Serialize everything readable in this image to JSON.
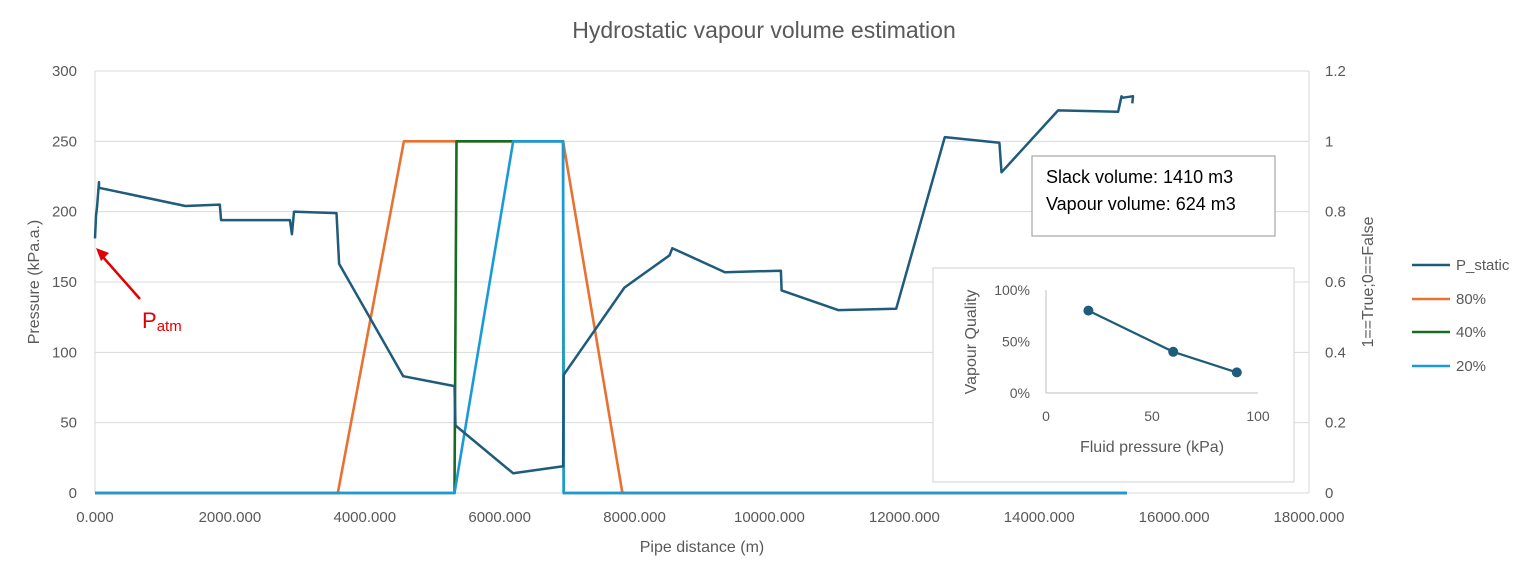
{
  "chart_data": {
    "type": "line",
    "title": "Hydrostatic vapour volume estimation",
    "xlabel": "Pipe distance (m)",
    "ylabel": "Pressure (kPa.a.)",
    "y2label": "1==True;0==False",
    "xlim": [
      0,
      18000
    ],
    "ylim": [
      0,
      300
    ],
    "y2lim": [
      0,
      1.2
    ],
    "x_ticks": [
      "0.000",
      "2000.000",
      "4000.000",
      "6000.000",
      "8000.000",
      "10000.000",
      "12000.000",
      "14000.000",
      "16000.000",
      "18000.000"
    ],
    "y_ticks": [
      "0",
      "50",
      "100",
      "150",
      "200",
      "250",
      "300"
    ],
    "y2_ticks": [
      "0",
      "0.2",
      "0.4",
      "0.6",
      "0.8",
      "1",
      "1.2"
    ],
    "grid": true,
    "legend_position": "right",
    "series": [
      {
        "name": "P_static",
        "axis": "left",
        "color": "#1f5b7a",
        "x": [
          0,
          15,
          30,
          45,
          60,
          60,
          1340,
          1850,
          1870,
          2890,
          2920,
          2950,
          2980,
          3580,
          3620,
          4570,
          5330,
          5345,
          6200,
          6940,
          6950,
          7850,
          8520,
          8560,
          9340,
          10170,
          10180,
          11020,
          11880,
          12600,
          13410,
          13440,
          14280,
          15170,
          15220,
          15240,
          15380,
          15390,
          15380
        ],
        "y": [
          181,
          197,
          203,
          212,
          221,
          217,
          204,
          205,
          194,
          194,
          184,
          200,
          200,
          199,
          163,
          83,
          76,
          48,
          14,
          19,
          84,
          146,
          169,
          174,
          157,
          158,
          144,
          130,
          131,
          253,
          249,
          228,
          272,
          271,
          282,
          281,
          282,
          282,
          277
        ]
      },
      {
        "name": "80%",
        "axis": "right",
        "color": "#e97132",
        "x": [
          0,
          3600,
          4580,
          6940,
          7820,
          15300
        ],
        "y": [
          0,
          0,
          1,
          1,
          0,
          0
        ]
      },
      {
        "name": "40%",
        "axis": "right",
        "color": "#196b24",
        "x": [
          0,
          5330,
          5360,
          6200,
          6940,
          6950,
          15300
        ],
        "y": [
          0,
          0,
          1,
          1,
          1,
          0,
          0
        ]
      },
      {
        "name": "20%",
        "axis": "right",
        "color": "#1a9bd7",
        "x": [
          0,
          5330,
          6200,
          6940,
          6950,
          15300
        ],
        "y": [
          0,
          0,
          1,
          1,
          0,
          0
        ]
      }
    ],
    "annotation": {
      "label_main": "P",
      "label_sub": "atm",
      "color": "#e00000",
      "points_to": {
        "x": 0,
        "y": 181
      }
    },
    "textbox": {
      "line1": "Slack volume: 1410 m3",
      "line2": "Vapour volume: 624 m3"
    },
    "inset": {
      "type": "line",
      "xlabel": "Fluid pressure (kPa)",
      "ylabel": "Vapour Quality",
      "xlim": [
        0,
        100
      ],
      "ylim": [
        0,
        1
      ],
      "x_ticks": [
        "0",
        "50",
        "100"
      ],
      "y_ticks": [
        "0%",
        "50%",
        "100%"
      ],
      "color": "#1f5b7a",
      "x": [
        20,
        60,
        90
      ],
      "y": [
        0.8,
        0.4,
        0.2
      ]
    }
  }
}
